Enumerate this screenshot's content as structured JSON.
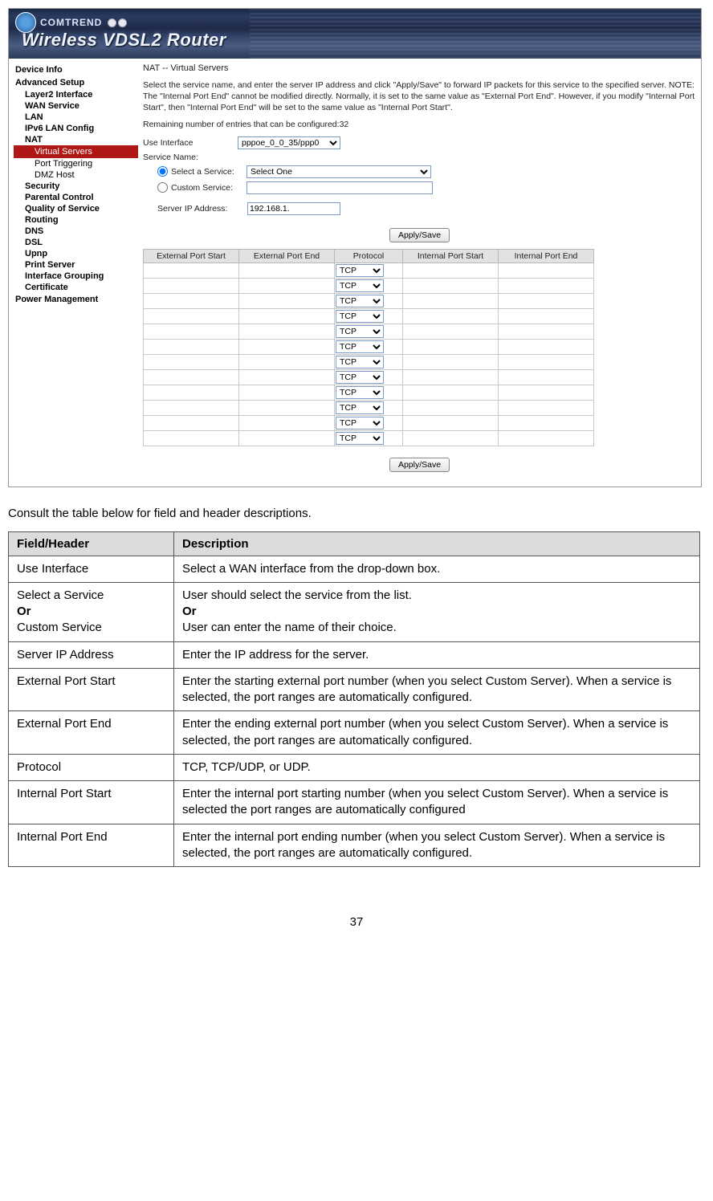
{
  "header": {
    "brand": "COMTREND",
    "product": "Wireless VDSL2 Router"
  },
  "nav": [
    {
      "label": "Device Info",
      "lvl": 1
    },
    {
      "label": "Advanced Setup",
      "lvl": 1
    },
    {
      "label": "Layer2 Interface",
      "lvl": 2
    },
    {
      "label": "WAN Service",
      "lvl": 2
    },
    {
      "label": "LAN",
      "lvl": 2
    },
    {
      "label": "IPv6 LAN Config",
      "lvl": 2
    },
    {
      "label": "NAT",
      "lvl": 2
    },
    {
      "label": "Virtual Servers",
      "lvl": 3,
      "active": true
    },
    {
      "label": "Port Triggering",
      "lvl": 3
    },
    {
      "label": "DMZ Host",
      "lvl": 3
    },
    {
      "label": "Security",
      "lvl": 2
    },
    {
      "label": "Parental Control",
      "lvl": 2
    },
    {
      "label": "Quality of Service",
      "lvl": 2
    },
    {
      "label": "Routing",
      "lvl": 2
    },
    {
      "label": "DNS",
      "lvl": 2
    },
    {
      "label": "DSL",
      "lvl": 2
    },
    {
      "label": "Upnp",
      "lvl": 2
    },
    {
      "label": "Print Server",
      "lvl": 2
    },
    {
      "label": "Interface Grouping",
      "lvl": 2
    },
    {
      "label": "Certificate",
      "lvl": 2
    },
    {
      "label": "Power Management",
      "lvl": 1
    }
  ],
  "page": {
    "title": "NAT -- Virtual Servers",
    "instructions": "Select the service name, and enter the server IP address and click \"Apply/Save\" to forward IP packets for this service to the specified server. NOTE: The \"Internal Port End\" cannot be modified directly. Normally, it is set to the same value as \"External Port End\". However, if you modify \"Internal Port Start\", then \"Internal Port End\" will be set to the same value as \"Internal Port Start\".",
    "remaining_label": "Remaining number of entries that can be configured:",
    "remaining_value": "32",
    "use_interface_label": "Use Interface",
    "interface_value": "pppoe_0_0_35/ppp0",
    "service_name_label": "Service Name:",
    "select_service_label": "Select a Service:",
    "select_service_value": "Select One",
    "custom_service_label": "Custom Service:",
    "custom_service_value": "",
    "server_ip_label": "Server IP Address:",
    "server_ip_value": "192.168.1.",
    "apply_button": "Apply/Save",
    "ports_table": {
      "headers": [
        "External Port Start",
        "External Port End",
        "Protocol",
        "Internal Port Start",
        "Internal Port End"
      ],
      "protocol_default": "TCP",
      "row_count": 12
    }
  },
  "doc": {
    "intro": "Consult the table below for field and header descriptions.",
    "th_field": "Field/Header",
    "th_desc": "Description",
    "rows": [
      {
        "field": "Use Interface",
        "desc": "Select a WAN interface from the drop-down box."
      },
      {
        "field": "Select a Service\n<b>Or</b>\nCustom Service",
        "desc": "User should select the service from the list.\n<b>Or</b>\nUser can enter the name of their choice."
      },
      {
        "field": "Server IP Address",
        "desc": "Enter the IP address for the server."
      },
      {
        "field": "External Port Start",
        "desc": "Enter the starting external port number (when you select Custom Server). When a service is selected, the port ranges are automatically configured."
      },
      {
        "field": "External Port End",
        "desc": "Enter the ending external port number (when you select Custom Server). When a service is selected, the port ranges are automatically configured."
      },
      {
        "field": "Protocol",
        "desc": "TCP, TCP/UDP, or UDP."
      },
      {
        "field": "Internal Port Start",
        "desc": "Enter the internal port starting number (when you select Custom Server). When a service is selected the port ranges are automatically configured"
      },
      {
        "field": "Internal Port End",
        "desc": "Enter the internal port ending number (when you select Custom Server). When a service is selected, the port ranges are automatically configured."
      }
    ],
    "page_number": "37"
  }
}
